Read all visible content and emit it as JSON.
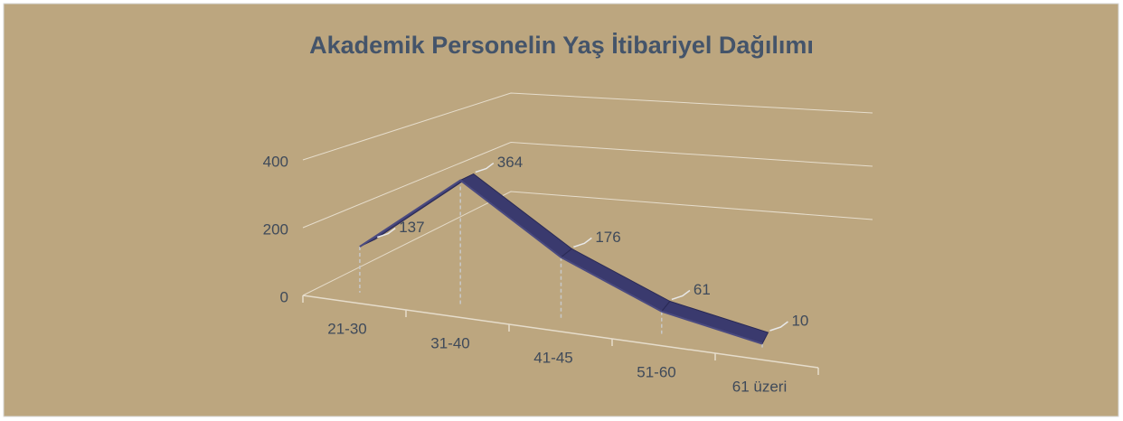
{
  "chart_data": {
    "type": "line3d",
    "title": "Akademik Personelin Yaş İtibariyel Dağılımı",
    "categories": [
      "21-30",
      "31-40",
      "41-45",
      "51-60",
      "61 üzeri"
    ],
    "series": [
      {
        "color": "#3a3a6e",
        "values": [
          137,
          364,
          176,
          61,
          10
        ]
      }
    ],
    "ylim": [
      0,
      400
    ],
    "yticks": [
      0,
      200,
      400
    ],
    "grid": true
  }
}
